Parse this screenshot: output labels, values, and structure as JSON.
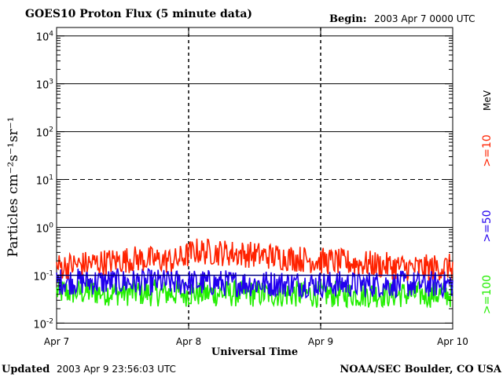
{
  "header": {
    "title": "GOES10 Proton Flux (5 minute data)",
    "begin_label": "Begin:",
    "begin_value": "2003 Apr 7 0000 UTC"
  },
  "footer": {
    "updated_label": "Updated",
    "updated_value": "2003 Apr  9 23:56:03 UTC",
    "credit": "NOAA/SEC Boulder, CO USA"
  },
  "chart_data": {
    "type": "line",
    "title": "GOES10 Proton Flux (5 minute data)",
    "xlabel": "Universal Time",
    "ylabel": "Particles cm⁻²s⁻¹sr⁻¹",
    "units_label": "MeV",
    "y_scale": "log",
    "ylim": [
      0.0075,
      15000
    ],
    "yticks": [
      {
        "base": "10",
        "exp": "4"
      },
      {
        "base": "10",
        "exp": "3"
      },
      {
        "base": "10",
        "exp": "2"
      },
      {
        "base": "10",
        "exp": "1"
      },
      {
        "base": "10",
        "exp": "0"
      },
      {
        "base": "10",
        "exp": "-1"
      },
      {
        "base": "10",
        "exp": "-2"
      }
    ],
    "ytick_values": [
      10000,
      1000,
      100,
      10,
      1,
      0.1,
      0.01
    ],
    "x_categories": [
      "Apr 7",
      "Apr 8",
      "Apr 9",
      "Apr 10"
    ],
    "grid": true,
    "threshold_lines": [
      {
        "value": 10,
        "style": "dashed"
      },
      {
        "value": 1,
        "style": "solid"
      },
      {
        "value": 0.1,
        "style": "solid",
        "color": "#000080"
      }
    ],
    "series": [
      {
        "name": ">=10",
        "color": "#ff2200",
        "anchors": [
          {
            "x": 0.0,
            "y": 0.15
          },
          {
            "x": 0.3,
            "y": 0.18
          },
          {
            "x": 0.6,
            "y": 0.22
          },
          {
            "x": 0.9,
            "y": 0.2
          },
          {
            "x": 1.05,
            "y": 0.32
          },
          {
            "x": 1.4,
            "y": 0.28
          },
          {
            "x": 1.7,
            "y": 0.24
          },
          {
            "x": 2.0,
            "y": 0.2
          },
          {
            "x": 2.4,
            "y": 0.17
          },
          {
            "x": 2.7,
            "y": 0.14
          },
          {
            "x": 3.0,
            "y": 0.15
          }
        ]
      },
      {
        "name": ">=50",
        "color": "#2200ee",
        "anchors": [
          {
            "x": 0.0,
            "y": 0.075
          },
          {
            "x": 1.0,
            "y": 0.07
          },
          {
            "x": 2.0,
            "y": 0.065
          },
          {
            "x": 3.0,
            "y": 0.065
          }
        ]
      },
      {
        "name": ">=100",
        "color": "#22ee00",
        "anchors": [
          {
            "x": 0.0,
            "y": 0.045
          },
          {
            "x": 1.0,
            "y": 0.042
          },
          {
            "x": 2.0,
            "y": 0.04
          },
          {
            "x": 3.0,
            "y": 0.04
          }
        ]
      }
    ]
  }
}
